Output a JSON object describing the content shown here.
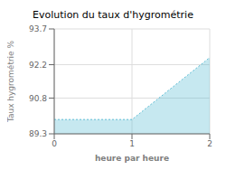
{
  "chart_data": {
    "type": "area",
    "title": "Evolution du taux d'hygrométrie",
    "xlabel": "heure par heure",
    "ylabel": "Taux hygrométrie %",
    "x": [
      0,
      1,
      2
    ],
    "values": [
      89.9,
      89.9,
      92.5
    ],
    "xlim": [
      0,
      2
    ],
    "ylim": [
      89.3,
      93.7
    ],
    "xticks": [
      0,
      1,
      2
    ],
    "yticks": [
      89.3,
      90.8,
      92.2,
      93.7
    ],
    "grid": true,
    "color": "#5bbcd4",
    "line_style": "dotted"
  }
}
